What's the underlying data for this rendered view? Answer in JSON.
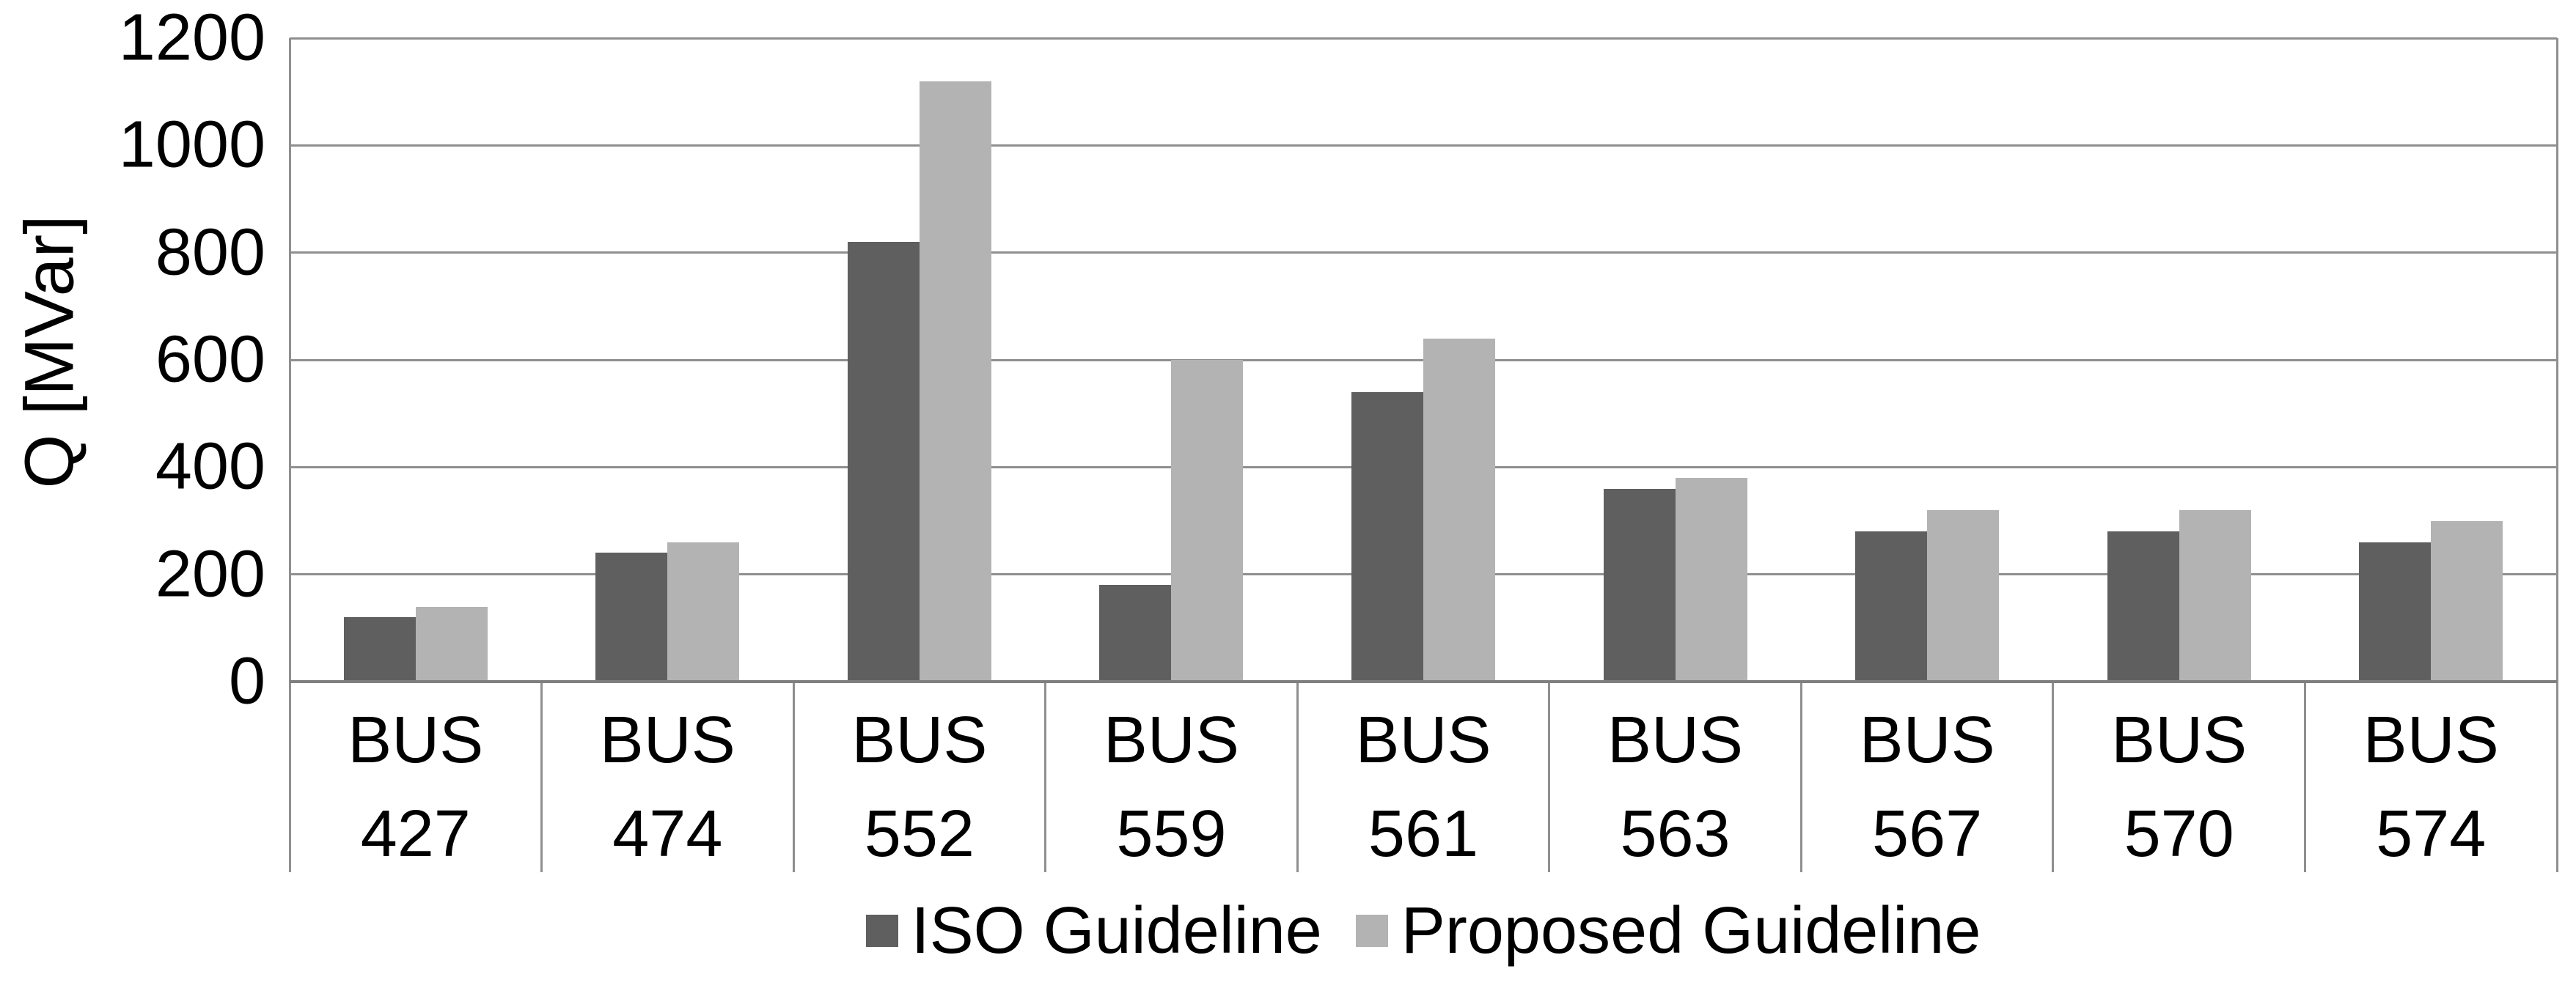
{
  "figure": {
    "background": "#ffffff",
    "text_color": "#000000"
  },
  "chart_data": {
    "type": "bar",
    "title": "",
    "xlabel": "",
    "ylabel": "Q [MVar]",
    "categories": [
      "BUS 427",
      "BUS 474",
      "BUS 552",
      "BUS 559",
      "BUS 561",
      "BUS 563",
      "BUS 567",
      "BUS 570",
      "BUS 574"
    ],
    "series": [
      {
        "name": "ISO Guideline",
        "color": "#5f5f5f",
        "values": [
          120,
          240,
          820,
          180,
          540,
          360,
          280,
          280,
          260
        ]
      },
      {
        "name": "Proposed Guideline",
        "color": "#b3b3b3",
        "values": [
          140,
          260,
          1120,
          600,
          640,
          380,
          320,
          320,
          300
        ]
      }
    ],
    "ylim": [
      0,
      1200
    ],
    "yticks": [
      0,
      200,
      400,
      600,
      800,
      1000,
      1200
    ],
    "grid": true,
    "gridline_color": "#8f8f8f",
    "axis_color": "#7f7f7f",
    "legend_position": "bottom-center"
  }
}
